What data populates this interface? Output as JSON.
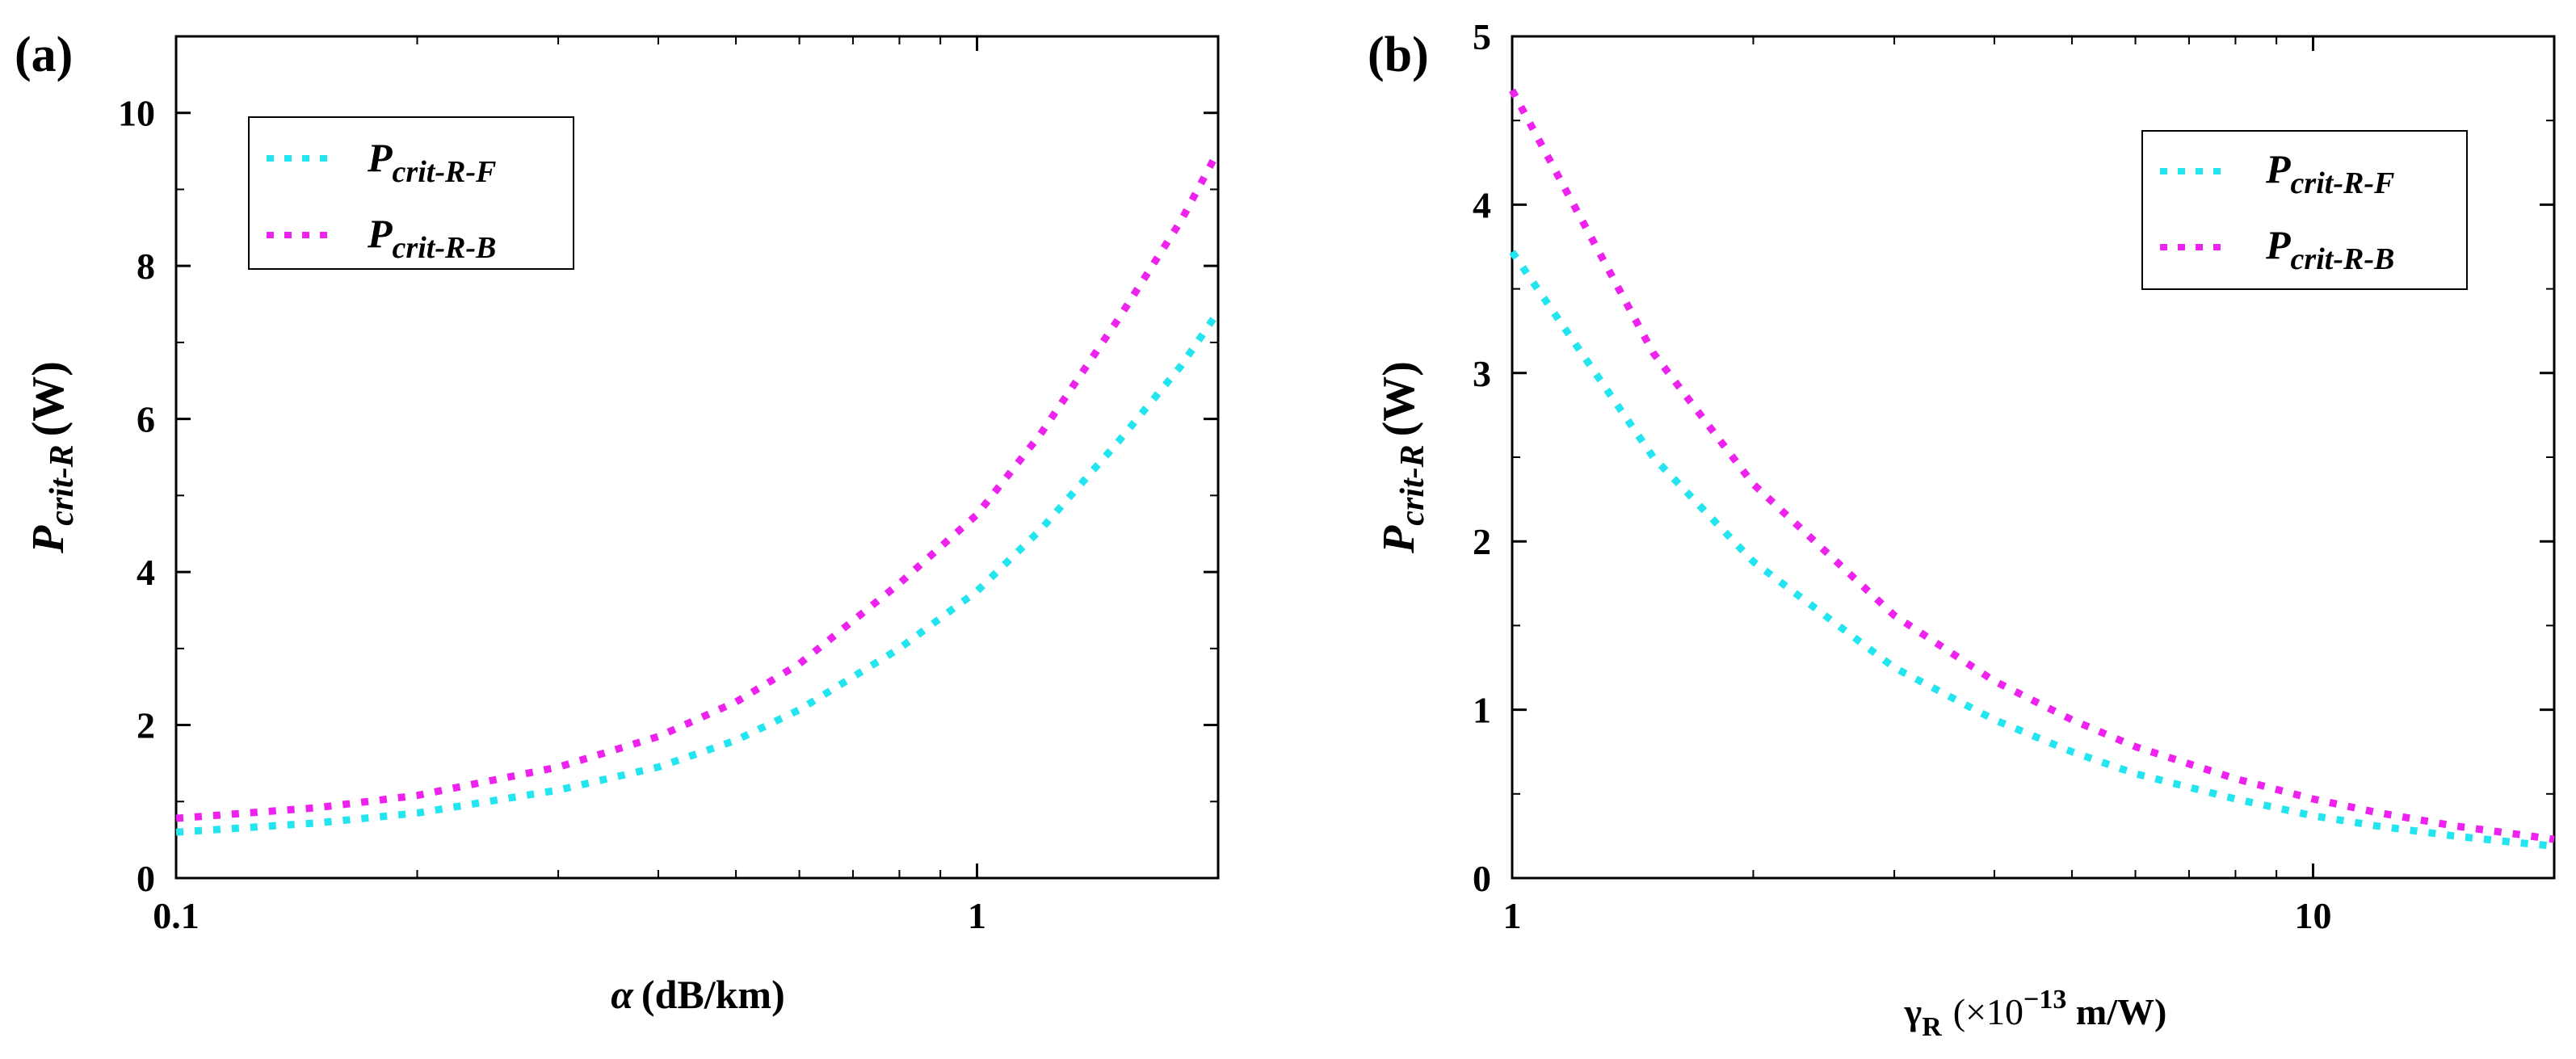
{
  "chart_data": [
    {
      "type": "line",
      "panel_label": "(a)",
      "xscale": "log",
      "xlim": [
        0.1,
        2.0
      ],
      "ylim": [
        0,
        11
      ],
      "xticks": [
        {
          "value": 0.1,
          "label": "0.1"
        },
        {
          "value": 1,
          "label": "1"
        }
      ],
      "yticks": [
        {
          "value": 0,
          "label": "0"
        },
        {
          "value": 2,
          "label": "2"
        },
        {
          "value": 4,
          "label": "4"
        },
        {
          "value": 6,
          "label": "6"
        },
        {
          "value": 8,
          "label": "8"
        },
        {
          "value": 10,
          "label": "10"
        }
      ],
      "ylabel": {
        "main": "P",
        "sub": "crit-R",
        "unit": "(W)"
      },
      "xlabel": {
        "symbol": "α",
        "unit": "(dB/km)"
      },
      "legend_position": "top-left",
      "series": [
        {
          "name": "P crit-R-F",
          "label_main": "P",
          "label_sub": "crit-R-F",
          "color": "#22e5f0",
          "x": [
            0.1,
            0.15,
            0.2,
            0.3,
            0.4,
            0.5,
            0.6,
            0.8,
            1.0,
            1.2,
            1.5,
            1.8,
            2.0
          ],
          "y": [
            0.6,
            0.72,
            0.85,
            1.15,
            1.45,
            1.8,
            2.2,
            3.0,
            3.75,
            4.55,
            5.7,
            6.7,
            7.4
          ]
        },
        {
          "name": "P crit-R-B",
          "label_main": "P",
          "label_sub": "crit-R-B",
          "color": "#ee22ee",
          "x": [
            0.1,
            0.15,
            0.2,
            0.3,
            0.4,
            0.5,
            0.6,
            0.8,
            1.0,
            1.2,
            1.5,
            1.8,
            2.0
          ],
          "y": [
            0.78,
            0.92,
            1.08,
            1.45,
            1.85,
            2.3,
            2.8,
            3.85,
            4.75,
            5.8,
            7.3,
            8.6,
            9.5
          ]
        }
      ]
    },
    {
      "type": "line",
      "panel_label": "(b)",
      "xscale": "log",
      "xlim": [
        1,
        20
      ],
      "ylim": [
        0,
        5
      ],
      "xticks": [
        {
          "value": 1,
          "label": "1"
        },
        {
          "value": 10,
          "label": "10"
        }
      ],
      "yticks": [
        {
          "value": 0,
          "label": "0"
        },
        {
          "value": 1,
          "label": "1"
        },
        {
          "value": 2,
          "label": "2"
        },
        {
          "value": 3,
          "label": "3"
        },
        {
          "value": 4,
          "label": "4"
        },
        {
          "value": 5,
          "label": "5"
        }
      ],
      "ylabel": {
        "main": "P",
        "sub": "crit-R",
        "unit": "(W)"
      },
      "xlabel": {
        "symbol": "γ",
        "symbol_sub": "R",
        "unit_open": "(×10",
        "unit_exp": "−13",
        "unit_close": " m/W)"
      },
      "legend_position": "top-right",
      "series": [
        {
          "name": "P crit-R-F",
          "label_main": "P",
          "label_sub": "crit-R-F",
          "color": "#22e5f0",
          "x": [
            1,
            1.5,
            2,
            3,
            4,
            5,
            6,
            8,
            10,
            12,
            15,
            18,
            20
          ],
          "y": [
            3.72,
            2.5,
            1.88,
            1.25,
            0.94,
            0.75,
            0.62,
            0.47,
            0.37,
            0.31,
            0.25,
            0.21,
            0.19
          ]
        },
        {
          "name": "P crit-R-B",
          "label_main": "P",
          "label_sub": "crit-R-B",
          "color": "#ee22ee",
          "x": [
            1,
            1.5,
            2,
            3,
            4,
            5,
            6,
            8,
            10,
            12,
            15,
            18,
            20
          ],
          "y": [
            4.68,
            3.12,
            2.34,
            1.56,
            1.17,
            0.94,
            0.78,
            0.59,
            0.47,
            0.39,
            0.31,
            0.26,
            0.23
          ]
        }
      ]
    }
  ]
}
